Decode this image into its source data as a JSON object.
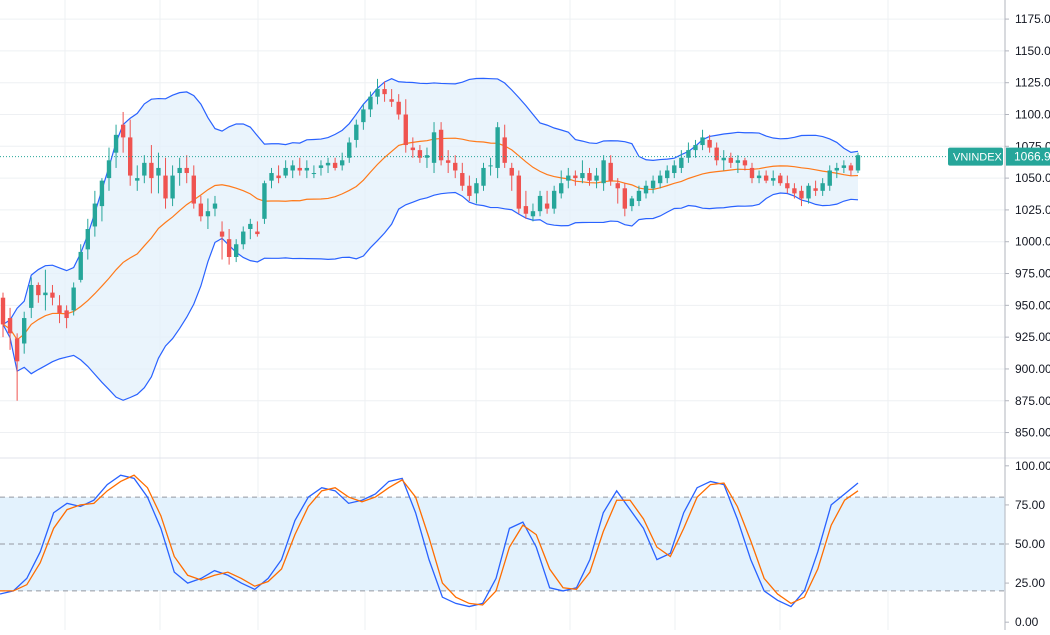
{
  "colors": {
    "background": "#ffffff",
    "grid": "#eef0f3",
    "up_candle": "#26a69a",
    "down_candle": "#ef5350",
    "bollinger_band": "#2962ff",
    "bollinger_fill": "#e3f0fb",
    "basis_line": "#ff7a1a",
    "stoch_k": "#2962ff",
    "stoch_d": "#ff6d00",
    "stoch_fill": "#e3f2fd",
    "axis_text": "#131722",
    "price_label_bg": "#26a69a",
    "price_label_text": "#ffffff"
  },
  "chart_data": [
    {
      "type": "candlestick",
      "symbol_label": "VNINDEX",
      "last_price_label": "1066.9",
      "last_price": 1066.9,
      "y_ticks": [
        "850.00",
        "875.00",
        "900.00",
        "925.00",
        "950.00",
        "975.00",
        "1000.00",
        "1025.00",
        "1050.00",
        "1075.00",
        "1100.00",
        "1125.00",
        "1150.00",
        "1175.00"
      ],
      "ylim": [
        830,
        1190
      ],
      "grid": true,
      "candles": [
        [
          956,
          960,
          925,
          935
        ],
        [
          940,
          948,
          915,
          928
        ],
        [
          924,
          928,
          875,
          906
        ],
        [
          920,
          945,
          912,
          940
        ],
        [
          948,
          972,
          940,
          966
        ],
        [
          966,
          968,
          952,
          958
        ],
        [
          958,
          978,
          946,
          960
        ],
        [
          960,
          966,
          950,
          956
        ],
        [
          950,
          958,
          936,
          944
        ],
        [
          946,
          950,
          932,
          940
        ],
        [
          946,
          968,
          942,
          964
        ],
        [
          970,
          998,
          968,
          992
        ],
        [
          994,
          1018,
          986,
          1010
        ],
        [
          1012,
          1040,
          1004,
          1030
        ],
        [
          1028,
          1050,
          1016,
          1048
        ],
        [
          1050,
          1074,
          1040,
          1064
        ],
        [
          1070,
          1092,
          1058,
          1084
        ],
        [
          1092,
          1102,
          1070,
          1082
        ],
        [
          1082,
          1096,
          1044,
          1052
        ],
        [
          1048,
          1060,
          1040,
          1050
        ],
        [
          1052,
          1068,
          1046,
          1062
        ],
        [
          1062,
          1076,
          1038,
          1050
        ],
        [
          1052,
          1070,
          1038,
          1058
        ],
        [
          1052,
          1066,
          1026,
          1034
        ],
        [
          1034,
          1060,
          1028,
          1052
        ],
        [
          1054,
          1066,
          1044,
          1058
        ],
        [
          1058,
          1068,
          1046,
          1054
        ],
        [
          1052,
          1060,
          1026,
          1030
        ],
        [
          1030,
          1036,
          1016,
          1020
        ],
        [
          1020,
          1034,
          1010,
          1024
        ],
        [
          1026,
          1036,
          1020,
          1030
        ],
        [
          1008,
          1016,
          986,
          1004
        ],
        [
          1002,
          1010,
          982,
          988
        ],
        [
          988,
          1002,
          984,
          998
        ],
        [
          998,
          1012,
          994,
          1008
        ],
        [
          1010,
          1018,
          1002,
          1014
        ],
        [
          1008,
          1016,
          1004,
          1006
        ],
        [
          1018,
          1048,
          1014,
          1046
        ],
        [
          1048,
          1058,
          1042,
          1054
        ],
        [
          1052,
          1060,
          1046,
          1050
        ],
        [
          1052,
          1064,
          1050,
          1058
        ],
        [
          1056,
          1064,
          1050,
          1060
        ],
        [
          1058,
          1066,
          1052,
          1056
        ],
        [
          1056,
          1064,
          1050,
          1058
        ],
        [
          1054,
          1060,
          1050,
          1054
        ],
        [
          1058,
          1064,
          1052,
          1060
        ],
        [
          1060,
          1066,
          1054,
          1062
        ],
        [
          1062,
          1066,
          1056,
          1058
        ],
        [
          1060,
          1070,
          1056,
          1064
        ],
        [
          1066,
          1082,
          1062,
          1078
        ],
        [
          1080,
          1096,
          1074,
          1092
        ],
        [
          1094,
          1108,
          1088,
          1104
        ],
        [
          1104,
          1118,
          1098,
          1114
        ],
        [
          1114,
          1128,
          1108,
          1120
        ],
        [
          1120,
          1126,
          1110,
          1116
        ],
        [
          1112,
          1120,
          1106,
          1110
        ],
        [
          1110,
          1116,
          1096,
          1100
        ],
        [
          1100,
          1112,
          1070,
          1076
        ],
        [
          1074,
          1082,
          1066,
          1072
        ],
        [
          1072,
          1076,
          1062,
          1066
        ],
        [
          1066,
          1074,
          1058,
          1068
        ],
        [
          1062,
          1094,
          1054,
          1086
        ],
        [
          1088,
          1094,
          1060,
          1064
        ],
        [
          1064,
          1072,
          1054,
          1062
        ],
        [
          1062,
          1068,
          1050,
          1056
        ],
        [
          1054,
          1062,
          1040,
          1044
        ],
        [
          1044,
          1052,
          1032,
          1036
        ],
        [
          1038,
          1050,
          1030,
          1046
        ],
        [
          1044,
          1062,
          1040,
          1058
        ],
        [
          1060,
          1066,
          1052,
          1060
        ],
        [
          1058,
          1094,
          1050,
          1090
        ],
        [
          1082,
          1092,
          1058,
          1062
        ],
        [
          1058,
          1062,
          1040,
          1052
        ],
        [
          1052,
          1056,
          1022,
          1026
        ],
        [
          1028,
          1040,
          1018,
          1022
        ],
        [
          1020,
          1030,
          1016,
          1024
        ],
        [
          1024,
          1040,
          1020,
          1036
        ],
        [
          1030,
          1040,
          1022,
          1026
        ],
        [
          1026,
          1044,
          1022,
          1040
        ],
        [
          1038,
          1056,
          1034,
          1046
        ],
        [
          1048,
          1058,
          1042,
          1052
        ],
        [
          1052,
          1056,
          1044,
          1050
        ],
        [
          1050,
          1064,
          1046,
          1054
        ],
        [
          1054,
          1058,
          1044,
          1048
        ],
        [
          1048,
          1058,
          1042,
          1052
        ],
        [
          1046,
          1068,
          1040,
          1064
        ],
        [
          1062,
          1068,
          1044,
          1048
        ],
        [
          1046,
          1050,
          1030,
          1042
        ],
        [
          1042,
          1046,
          1020,
          1026
        ],
        [
          1028,
          1036,
          1024,
          1034
        ],
        [
          1032,
          1044,
          1028,
          1040
        ],
        [
          1038,
          1048,
          1034,
          1044
        ],
        [
          1042,
          1052,
          1038,
          1048
        ],
        [
          1046,
          1056,
          1042,
          1052
        ],
        [
          1050,
          1060,
          1046,
          1056
        ],
        [
          1054,
          1064,
          1050,
          1060
        ],
        [
          1058,
          1072,
          1054,
          1066
        ],
        [
          1066,
          1078,
          1062,
          1072
        ],
        [
          1072,
          1080,
          1066,
          1076
        ],
        [
          1076,
          1088,
          1072,
          1082
        ],
        [
          1080,
          1084,
          1070,
          1074
        ],
        [
          1074,
          1078,
          1060,
          1064
        ],
        [
          1064,
          1072,
          1056,
          1066
        ],
        [
          1066,
          1070,
          1058,
          1062
        ],
        [
          1062,
          1068,
          1054,
          1064
        ],
        [
          1064,
          1066,
          1056,
          1060
        ],
        [
          1058,
          1062,
          1046,
          1050
        ],
        [
          1050,
          1056,
          1046,
          1052
        ],
        [
          1052,
          1056,
          1046,
          1048
        ],
        [
          1048,
          1056,
          1044,
          1050
        ],
        [
          1052,
          1054,
          1044,
          1046
        ],
        [
          1046,
          1052,
          1038,
          1042
        ],
        [
          1042,
          1046,
          1034,
          1038
        ],
        [
          1040,
          1044,
          1028,
          1034
        ],
        [
          1034,
          1046,
          1030,
          1044
        ],
        [
          1042,
          1048,
          1036,
          1040
        ],
        [
          1040,
          1050,
          1036,
          1046
        ],
        [
          1044,
          1060,
          1040,
          1056
        ],
        [
          1056,
          1062,
          1050,
          1058
        ],
        [
          1058,
          1064,
          1054,
          1060
        ],
        [
          1060,
          1062,
          1052,
          1056
        ],
        [
          1056,
          1070,
          1054,
          1068
        ]
      ]
    },
    {
      "type": "line",
      "indicator": "stochastic",
      "y_ticks": [
        "0.00",
        "25.00",
        "50.00",
        "75.00",
        "100.00"
      ],
      "ylim": [
        -5,
        105
      ],
      "band_levels": [
        20,
        50,
        80
      ],
      "series": [
        {
          "values": [
            18,
            20,
            28,
            45,
            70,
            76,
            74,
            78,
            88,
            94,
            92,
            80,
            60,
            32,
            25,
            28,
            33,
            30,
            25,
            21,
            28,
            40,
            65,
            80,
            86,
            84,
            76,
            78,
            82,
            90,
            92,
            70,
            40,
            16,
            12,
            10,
            12,
            28,
            60,
            64,
            48,
            22,
            20,
            22,
            40,
            70,
            84,
            72,
            60,
            40,
            44,
            70,
            86,
            90,
            88,
            66,
            40,
            20,
            14,
            10,
            20,
            45,
            75,
            82,
            89
          ]
        },
        {
          "values": [
            20,
            20,
            24,
            38,
            60,
            72,
            75,
            76,
            84,
            90,
            94,
            86,
            68,
            42,
            30,
            27,
            30,
            32,
            28,
            23,
            26,
            34,
            56,
            74,
            84,
            86,
            80,
            77,
            80,
            86,
            91,
            80,
            54,
            25,
            16,
            12,
            11,
            20,
            48,
            62,
            56,
            34,
            22,
            21,
            32,
            58,
            78,
            78,
            66,
            48,
            42,
            60,
            80,
            88,
            89,
            74,
            52,
            28,
            18,
            12,
            16,
            34,
            62,
            78,
            84
          ]
        }
      ]
    }
  ]
}
